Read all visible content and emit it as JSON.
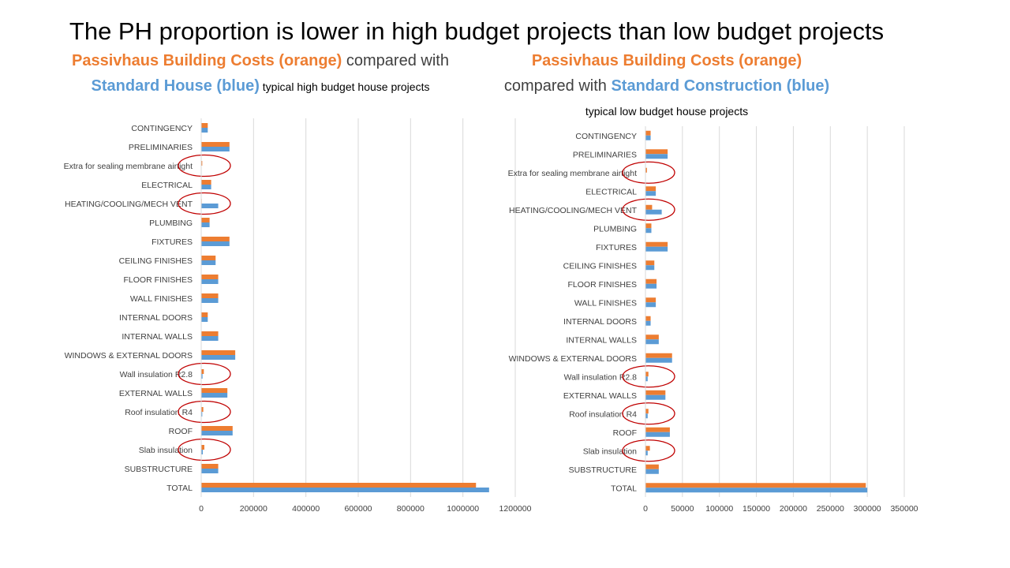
{
  "slide": {
    "title": "The PH proportion is lower in high budget projects than low budget projects"
  },
  "headings": {
    "left": {
      "orange_text": "Passivhaus Building Costs (orange)",
      "mid_text": " compared with ",
      "blue_text": "Standard House (blue)",
      "small_text": " typical high budget house projects"
    },
    "right": {
      "orange_text": "Passivhaus Building Costs (orange)",
      "mid_text": "compared with ",
      "blue_text": "Standard Construction (blue)",
      "small_text": " typical low budget house projects"
    }
  },
  "colors": {
    "passivhaus": "#ED7D31",
    "standard": "#5B9BD5",
    "highlight_circle": "#C00000",
    "gridline": "#D9D9D9",
    "axis_text": "#404040"
  },
  "chart_data": [
    {
      "type": "bar",
      "orientation": "horizontal",
      "categories": [
        "CONTINGENCY",
        "PRELIMINARIES",
        "Extra for sealing membrane airtight",
        "ELECTRICAL",
        "HEATING/COOLING/MECH VENT",
        "PLUMBING",
        "FIXTURES",
        "CEILING FINISHES",
        "FLOOR FINISHES",
        "WALL FINISHES",
        "INTERNAL DOORS",
        "INTERNAL WALLS",
        "WINDOWS & EXTERNAL DOORS",
        "Wall insulation R2.8",
        "EXTERNAL WALLS",
        "Roof insulation R4",
        "ROOF",
        "Slab insulation",
        "SUBSTRUCTURE",
        "TOTAL"
      ],
      "series": [
        {
          "values": [
            25000,
            108000,
            4000,
            38000,
            2000,
            32000,
            108000,
            55000,
            65000,
            65000,
            25000,
            65000,
            130000,
            10000,
            100000,
            8000,
            120000,
            12000,
            65000,
            1050000
          ]
        },
        {
          "values": [
            25000,
            108000,
            0,
            38000,
            65000,
            32000,
            108000,
            55000,
            65000,
            65000,
            25000,
            65000,
            130000,
            5000,
            100000,
            4000,
            120000,
            6000,
            65000,
            1100000
          ]
        }
      ],
      "xlim": [
        0,
        1200000
      ],
      "xticks": [
        "0",
        "200000",
        "400000",
        "600000",
        "800000",
        "1000000",
        "1200000"
      ],
      "highlighted": [
        "Extra for sealing membrane airtight",
        "HEATING/COOLING/MECH VENT",
        "Wall insulation R2.8",
        "Roof insulation R4",
        "Slab insulation"
      ],
      "grid": true,
      "legend": "none"
    },
    {
      "type": "bar",
      "orientation": "horizontal",
      "categories": [
        "CONTINGENCY",
        "PRELIMINARIES",
        "Extra for sealing membrane airtight",
        "ELECTRICAL",
        "HEATING/COOLING/MECH VENT",
        "PLUMBING",
        "FIXTURES",
        "CEILING FINISHES",
        "FLOOR FINISHES",
        "WALL FINISHES",
        "INTERNAL DOORS",
        "INTERNAL WALLS",
        "WINDOWS & EXTERNAL DOORS",
        "Wall insulation R2.8",
        "EXTERNAL WALLS",
        "Roof insulation R4",
        "ROOF",
        "Slab insulation",
        "SUBSTRUCTURE",
        "TOTAL"
      ],
      "series": [
        {
          "values": [
            7000,
            30000,
            2000,
            14000,
            9000,
            8000,
            30000,
            12000,
            15000,
            14000,
            7000,
            18000,
            36000,
            4000,
            27000,
            4000,
            33000,
            6000,
            18000,
            298000
          ]
        },
        {
          "values": [
            7000,
            30000,
            0,
            14000,
            22000,
            8000,
            30000,
            12000,
            15000,
            14000,
            7000,
            18000,
            36000,
            3000,
            27000,
            3000,
            33000,
            3000,
            18000,
            300000
          ]
        }
      ],
      "xlim": [
        0,
        350000
      ],
      "xticks": [
        "0",
        "50000",
        "100000",
        "150000",
        "200000",
        "250000",
        "300000",
        "350000"
      ],
      "highlighted": [
        "Extra for sealing membrane airtight",
        "HEATING/COOLING/MECH VENT",
        "Wall insulation R2.8",
        "Roof insulation R4",
        "Slab insulation"
      ],
      "grid": true,
      "legend": "none"
    }
  ]
}
